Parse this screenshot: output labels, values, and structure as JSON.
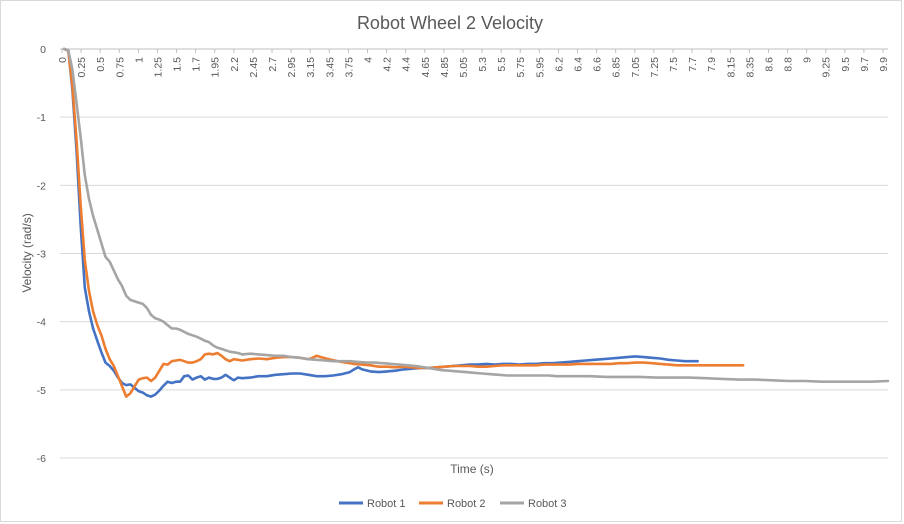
{
  "chart_data": {
    "type": "line",
    "title": "Robot Wheel 2 Velocity",
    "xlabel": "Time (s)",
    "ylabel": "Velocity (rad/s)",
    "ylim": [
      -6,
      0
    ],
    "xlim": [
      0,
      10
    ],
    "y_ticks": [
      0,
      -1,
      -2,
      -3,
      -4,
      -5,
      -6
    ],
    "x_tick_labels": [
      "0",
      "0.25",
      "0.5",
      "0.75",
      "1",
      "1.25",
      "1.5",
      "1.7",
      "1.95",
      "2.2",
      "2.45",
      "2.7",
      "2.95",
      "3.15",
      "3.45",
      "3.75",
      "4",
      "4.2",
      "4.4",
      "4.65",
      "4.85",
      "5.05",
      "5.3",
      "5.5",
      "5.75",
      "5.95",
      "6.2",
      "6.4",
      "6.6",
      "6.85",
      "7.05",
      "7.25",
      "7.5",
      "7.7",
      "7.9",
      "8.15",
      "8.35",
      "8.6",
      "8.8",
      "9",
      "9.25",
      "9.5",
      "9.7",
      "9.9"
    ],
    "grid": true,
    "legend_position": "bottom",
    "series": [
      {
        "name": "Robot 1",
        "color": "#4472C4",
        "points": [
          [
            0.05,
            0
          ],
          [
            0.1,
            -0.02
          ],
          [
            0.15,
            -0.6
          ],
          [
            0.2,
            -1.5
          ],
          [
            0.25,
            -2.6
          ],
          [
            0.3,
            -3.5
          ],
          [
            0.35,
            -3.85
          ],
          [
            0.4,
            -4.1
          ],
          [
            0.45,
            -4.28
          ],
          [
            0.5,
            -4.45
          ],
          [
            0.55,
            -4.6
          ],
          [
            0.6,
            -4.65
          ],
          [
            0.65,
            -4.72
          ],
          [
            0.7,
            -4.82
          ],
          [
            0.75,
            -4.9
          ],
          [
            0.8,
            -4.93
          ],
          [
            0.85,
            -4.92
          ],
          [
            0.9,
            -4.97
          ],
          [
            0.95,
            -5.02
          ],
          [
            1.0,
            -5.04
          ],
          [
            1.05,
            -5.08
          ],
          [
            1.1,
            -5.1
          ],
          [
            1.15,
            -5.07
          ],
          [
            1.2,
            -5.01
          ],
          [
            1.25,
            -4.94
          ],
          [
            1.3,
            -4.88
          ],
          [
            1.35,
            -4.9
          ],
          [
            1.4,
            -4.88
          ],
          [
            1.45,
            -4.88
          ],
          [
            1.5,
            -4.8
          ],
          [
            1.55,
            -4.79
          ],
          [
            1.6,
            -4.85
          ],
          [
            1.65,
            -4.82
          ],
          [
            1.7,
            -4.8
          ],
          [
            1.75,
            -4.85
          ],
          [
            1.8,
            -4.82
          ],
          [
            1.85,
            -4.84
          ],
          [
            1.9,
            -4.84
          ],
          [
            1.95,
            -4.82
          ],
          [
            2.0,
            -4.78
          ],
          [
            2.05,
            -4.82
          ],
          [
            2.1,
            -4.86
          ],
          [
            2.15,
            -4.82
          ],
          [
            2.2,
            -4.83
          ],
          [
            2.3,
            -4.82
          ],
          [
            2.4,
            -4.8
          ],
          [
            2.5,
            -4.8
          ],
          [
            2.6,
            -4.78
          ],
          [
            2.7,
            -4.77
          ],
          [
            2.8,
            -4.76
          ],
          [
            2.9,
            -4.76
          ],
          [
            3.0,
            -4.78
          ],
          [
            3.1,
            -4.8
          ],
          [
            3.2,
            -4.8
          ],
          [
            3.3,
            -4.79
          ],
          [
            3.4,
            -4.77
          ],
          [
            3.5,
            -4.74
          ],
          [
            3.55,
            -4.7
          ],
          [
            3.6,
            -4.67
          ],
          [
            3.65,
            -4.7
          ],
          [
            3.75,
            -4.73
          ],
          [
            3.85,
            -4.74
          ],
          [
            3.95,
            -4.73
          ],
          [
            4.05,
            -4.72
          ],
          [
            4.15,
            -4.7
          ],
          [
            4.25,
            -4.69
          ],
          [
            4.35,
            -4.68
          ],
          [
            4.45,
            -4.68
          ],
          [
            4.55,
            -4.67
          ],
          [
            4.65,
            -4.66
          ],
          [
            4.75,
            -4.65
          ],
          [
            4.85,
            -4.64
          ],
          [
            4.95,
            -4.63
          ],
          [
            5.05,
            -4.63
          ],
          [
            5.15,
            -4.62
          ],
          [
            5.25,
            -4.63
          ],
          [
            5.35,
            -4.62
          ],
          [
            5.45,
            -4.62
          ],
          [
            5.55,
            -4.63
          ],
          [
            5.65,
            -4.62
          ],
          [
            5.75,
            -4.62
          ],
          [
            5.85,
            -4.61
          ],
          [
            5.95,
            -4.61
          ],
          [
            6.05,
            -4.6
          ],
          [
            6.15,
            -4.59
          ],
          [
            6.25,
            -4.58
          ],
          [
            6.35,
            -4.57
          ],
          [
            6.45,
            -4.56
          ],
          [
            6.55,
            -4.55
          ],
          [
            6.65,
            -4.54
          ],
          [
            6.75,
            -4.53
          ],
          [
            6.85,
            -4.52
          ],
          [
            6.95,
            -4.51
          ],
          [
            7.05,
            -4.52
          ],
          [
            7.15,
            -4.53
          ],
          [
            7.25,
            -4.54
          ],
          [
            7.35,
            -4.56
          ],
          [
            7.45,
            -4.57
          ],
          [
            7.55,
            -4.58
          ],
          [
            7.65,
            -4.58
          ],
          [
            7.7,
            -4.58
          ]
        ]
      },
      {
        "name": "Robot 2",
        "color": "#ED7D31",
        "points": [
          [
            0.05,
            0
          ],
          [
            0.1,
            -0.03
          ],
          [
            0.15,
            -0.55
          ],
          [
            0.2,
            -1.35
          ],
          [
            0.25,
            -2.3
          ],
          [
            0.3,
            -3.1
          ],
          [
            0.35,
            -3.55
          ],
          [
            0.4,
            -3.85
          ],
          [
            0.45,
            -4.05
          ],
          [
            0.5,
            -4.2
          ],
          [
            0.55,
            -4.4
          ],
          [
            0.6,
            -4.55
          ],
          [
            0.65,
            -4.65
          ],
          [
            0.7,
            -4.8
          ],
          [
            0.75,
            -4.95
          ],
          [
            0.8,
            -5.1
          ],
          [
            0.85,
            -5.05
          ],
          [
            0.9,
            -4.95
          ],
          [
            0.95,
            -4.85
          ],
          [
            1.0,
            -4.83
          ],
          [
            1.05,
            -4.82
          ],
          [
            1.1,
            -4.87
          ],
          [
            1.15,
            -4.82
          ],
          [
            1.2,
            -4.72
          ],
          [
            1.25,
            -4.62
          ],
          [
            1.3,
            -4.63
          ],
          [
            1.35,
            -4.58
          ],
          [
            1.4,
            -4.57
          ],
          [
            1.45,
            -4.56
          ],
          [
            1.5,
            -4.58
          ],
          [
            1.55,
            -4.6
          ],
          [
            1.6,
            -4.6
          ],
          [
            1.65,
            -4.58
          ],
          [
            1.7,
            -4.55
          ],
          [
            1.75,
            -4.48
          ],
          [
            1.8,
            -4.47
          ],
          [
            1.85,
            -4.48
          ],
          [
            1.9,
            -4.46
          ],
          [
            1.95,
            -4.5
          ],
          [
            2.0,
            -4.55
          ],
          [
            2.05,
            -4.58
          ],
          [
            2.1,
            -4.55
          ],
          [
            2.2,
            -4.57
          ],
          [
            2.3,
            -4.55
          ],
          [
            2.4,
            -4.54
          ],
          [
            2.5,
            -4.55
          ],
          [
            2.6,
            -4.53
          ],
          [
            2.7,
            -4.52
          ],
          [
            2.8,
            -4.52
          ],
          [
            2.9,
            -4.53
          ],
          [
            3.0,
            -4.55
          ],
          [
            3.05,
            -4.53
          ],
          [
            3.1,
            -4.5
          ],
          [
            3.15,
            -4.52
          ],
          [
            3.25,
            -4.55
          ],
          [
            3.35,
            -4.58
          ],
          [
            3.45,
            -4.6
          ],
          [
            3.55,
            -4.62
          ],
          [
            3.65,
            -4.63
          ],
          [
            3.75,
            -4.64
          ],
          [
            3.85,
            -4.66
          ],
          [
            3.95,
            -4.66
          ],
          [
            4.05,
            -4.67
          ],
          [
            4.15,
            -4.66
          ],
          [
            4.25,
            -4.67
          ],
          [
            4.35,
            -4.68
          ],
          [
            4.45,
            -4.68
          ],
          [
            4.55,
            -4.67
          ],
          [
            4.65,
            -4.66
          ],
          [
            4.75,
            -4.65
          ],
          [
            4.85,
            -4.65
          ],
          [
            4.95,
            -4.65
          ],
          [
            5.05,
            -4.66
          ],
          [
            5.15,
            -4.66
          ],
          [
            5.25,
            -4.65
          ],
          [
            5.35,
            -4.64
          ],
          [
            5.45,
            -4.64
          ],
          [
            5.55,
            -4.64
          ],
          [
            5.65,
            -4.64
          ],
          [
            5.75,
            -4.64
          ],
          [
            5.85,
            -4.63
          ],
          [
            5.95,
            -4.63
          ],
          [
            6.05,
            -4.63
          ],
          [
            6.15,
            -4.63
          ],
          [
            6.25,
            -4.62
          ],
          [
            6.35,
            -4.62
          ],
          [
            6.45,
            -4.62
          ],
          [
            6.55,
            -4.62
          ],
          [
            6.65,
            -4.62
          ],
          [
            6.75,
            -4.61
          ],
          [
            6.85,
            -4.61
          ],
          [
            6.95,
            -4.6
          ],
          [
            7.05,
            -4.6
          ],
          [
            7.15,
            -4.61
          ],
          [
            7.25,
            -4.62
          ],
          [
            7.35,
            -4.63
          ],
          [
            7.45,
            -4.64
          ],
          [
            7.55,
            -4.64
          ],
          [
            7.65,
            -4.64
          ],
          [
            7.75,
            -4.64
          ],
          [
            7.85,
            -4.64
          ],
          [
            7.95,
            -4.64
          ],
          [
            8.05,
            -4.64
          ],
          [
            8.15,
            -4.64
          ],
          [
            8.25,
            -4.64
          ]
        ]
      },
      {
        "name": "Robot 3",
        "color": "#A5A5A5",
        "points": [
          [
            0.05,
            0
          ],
          [
            0.1,
            -0.02
          ],
          [
            0.15,
            -0.3
          ],
          [
            0.2,
            -0.8
          ],
          [
            0.25,
            -1.3
          ],
          [
            0.3,
            -1.85
          ],
          [
            0.35,
            -2.2
          ],
          [
            0.4,
            -2.45
          ],
          [
            0.45,
            -2.65
          ],
          [
            0.5,
            -2.85
          ],
          [
            0.55,
            -3.05
          ],
          [
            0.6,
            -3.12
          ],
          [
            0.65,
            -3.25
          ],
          [
            0.7,
            -3.38
          ],
          [
            0.75,
            -3.48
          ],
          [
            0.8,
            -3.62
          ],
          [
            0.85,
            -3.68
          ],
          [
            0.9,
            -3.7
          ],
          [
            0.95,
            -3.72
          ],
          [
            1.0,
            -3.74
          ],
          [
            1.05,
            -3.8
          ],
          [
            1.1,
            -3.9
          ],
          [
            1.15,
            -3.95
          ],
          [
            1.2,
            -3.97
          ],
          [
            1.25,
            -4.0
          ],
          [
            1.3,
            -4.05
          ],
          [
            1.35,
            -4.1
          ],
          [
            1.4,
            -4.1
          ],
          [
            1.45,
            -4.12
          ],
          [
            1.5,
            -4.15
          ],
          [
            1.55,
            -4.18
          ],
          [
            1.6,
            -4.2
          ],
          [
            1.65,
            -4.22
          ],
          [
            1.7,
            -4.25
          ],
          [
            1.75,
            -4.28
          ],
          [
            1.8,
            -4.3
          ],
          [
            1.85,
            -4.35
          ],
          [
            1.9,
            -4.38
          ],
          [
            1.95,
            -4.4
          ],
          [
            2.0,
            -4.42
          ],
          [
            2.05,
            -4.44
          ],
          [
            2.1,
            -4.45
          ],
          [
            2.15,
            -4.46
          ],
          [
            2.2,
            -4.48
          ],
          [
            2.3,
            -4.47
          ],
          [
            2.4,
            -4.48
          ],
          [
            2.5,
            -4.49
          ],
          [
            2.6,
            -4.5
          ],
          [
            2.7,
            -4.5
          ],
          [
            2.8,
            -4.52
          ],
          [
            2.9,
            -4.53
          ],
          [
            3.0,
            -4.55
          ],
          [
            3.1,
            -4.56
          ],
          [
            3.2,
            -4.57
          ],
          [
            3.3,
            -4.58
          ],
          [
            3.4,
            -4.58
          ],
          [
            3.5,
            -4.58
          ],
          [
            3.6,
            -4.59
          ],
          [
            3.7,
            -4.6
          ],
          [
            3.8,
            -4.6
          ],
          [
            3.9,
            -4.61
          ],
          [
            4.0,
            -4.62
          ],
          [
            4.1,
            -4.63
          ],
          [
            4.2,
            -4.64
          ],
          [
            4.3,
            -4.65
          ],
          [
            4.4,
            -4.67
          ],
          [
            4.5,
            -4.69
          ],
          [
            4.6,
            -4.71
          ],
          [
            4.7,
            -4.72
          ],
          [
            4.8,
            -4.73
          ],
          [
            4.9,
            -4.74
          ],
          [
            5.0,
            -4.75
          ],
          [
            5.1,
            -4.76
          ],
          [
            5.2,
            -4.77
          ],
          [
            5.3,
            -4.78
          ],
          [
            5.4,
            -4.79
          ],
          [
            5.5,
            -4.79
          ],
          [
            5.6,
            -4.79
          ],
          [
            5.7,
            -4.79
          ],
          [
            5.8,
            -4.79
          ],
          [
            5.9,
            -4.79
          ],
          [
            6.0,
            -4.8
          ],
          [
            6.2,
            -4.8
          ],
          [
            6.4,
            -4.8
          ],
          [
            6.6,
            -4.81
          ],
          [
            6.8,
            -4.81
          ],
          [
            7.0,
            -4.81
          ],
          [
            7.2,
            -4.82
          ],
          [
            7.4,
            -4.82
          ],
          [
            7.6,
            -4.82
          ],
          [
            7.8,
            -4.83
          ],
          [
            8.0,
            -4.84
          ],
          [
            8.2,
            -4.85
          ],
          [
            8.4,
            -4.85
          ],
          [
            8.6,
            -4.86
          ],
          [
            8.8,
            -4.87
          ],
          [
            9.0,
            -4.87
          ],
          [
            9.2,
            -4.88
          ],
          [
            9.4,
            -4.88
          ],
          [
            9.6,
            -4.88
          ],
          [
            9.8,
            -4.88
          ],
          [
            10.0,
            -4.87
          ]
        ]
      }
    ]
  }
}
